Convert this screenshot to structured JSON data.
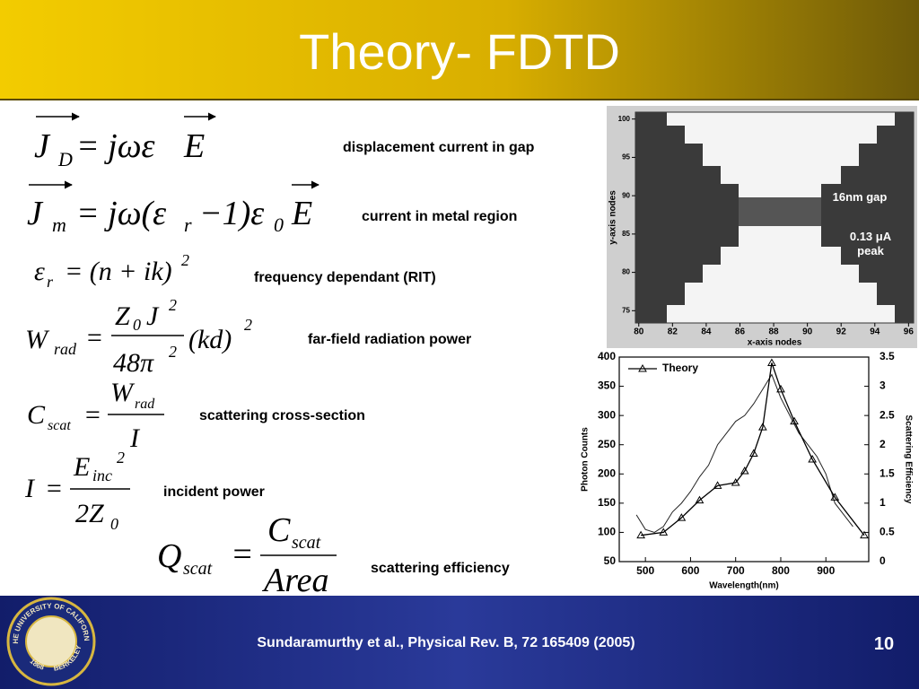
{
  "header": {
    "title": "Theory- FDTD"
  },
  "equations": [
    {
      "parts": [
        "J",
        "D",
        "= jωε",
        "E"
      ],
      "description": "displacement current in gap"
    },
    {
      "parts": [
        "J",
        "m",
        "= jω(ε",
        "r",
        "−1)ε",
        "0",
        "E"
      ],
      "description": "current in metal region"
    },
    {
      "parts": [
        "ε",
        "r",
        "= (n + ik)",
        "2"
      ],
      "description": "frequency dependant (RIT)"
    },
    {
      "parts": [
        "W",
        "rad",
        "=",
        "Z",
        "0",
        "J",
        "2",
        "48π",
        "2",
        "(kd)",
        "2"
      ],
      "description": "far-field radiation power"
    },
    {
      "parts": [
        "C",
        "scat",
        "=",
        "W",
        "rad",
        "I"
      ],
      "description": "scattering cross-section"
    },
    {
      "parts": [
        "I",
        "=",
        "E",
        "inc",
        "2",
        "2Z",
        "0"
      ],
      "description": "incident power"
    },
    {
      "parts": [
        "Q",
        "scat",
        "=",
        "C",
        "scat",
        "Area"
      ],
      "description": "scattering efficiency"
    }
  ],
  "field_plot": {
    "xlabel": "x-axis nodes",
    "ylabel": "y-axis nodes",
    "xlim": [
      79.8,
      96.3
    ],
    "ylim": [
      73.4,
      100.9
    ],
    "xticks": [
      80,
      82,
      84,
      86,
      88,
      90,
      92,
      94,
      96
    ],
    "yticks": [
      75,
      80,
      85,
      90,
      95,
      100
    ],
    "annotations": [
      "16nm gap",
      "0.13 μA",
      "peak"
    ]
  },
  "chart_data": {
    "type": "line",
    "xlabel": "Wavelength(nm)",
    "ylabel": "Photon Counts",
    "y2label": "Scattering Efficiency",
    "xlim": [
      442,
      995
    ],
    "ylim": [
      50,
      400
    ],
    "y2lim": [
      0,
      3.5
    ],
    "xticks": [
      500,
      600,
      700,
      800,
      900
    ],
    "yticks": [
      50,
      100,
      150,
      200,
      250,
      300,
      350,
      400
    ],
    "y2ticks": [
      0,
      0.5,
      1,
      1.5,
      2,
      2.5,
      3,
      3.5
    ],
    "legend": "upper left",
    "series": [
      {
        "color": "#222222",
        "x": [
          480,
          500,
          520,
          540,
          560,
          580,
          600,
          620,
          640,
          660,
          680,
          700,
          720,
          740,
          760,
          780,
          800,
          820,
          840,
          860,
          880,
          900,
          920,
          940,
          960
        ],
        "values": [
          130,
          105,
          100,
          110,
          135,
          150,
          170,
          195,
          215,
          250,
          270,
          290,
          300,
          320,
          345,
          370,
          330,
          300,
          270,
          250,
          230,
          200,
          150,
          130,
          110
        ]
      },
      {
        "name": "Theory",
        "color": "#000000",
        "axis": "y2",
        "x": [
          490,
          540,
          580,
          620,
          660,
          700,
          720,
          740,
          760,
          780,
          800,
          830,
          870,
          920,
          985
        ],
        "values": [
          0.45,
          0.5,
          0.75,
          1.05,
          1.3,
          1.35,
          1.55,
          1.85,
          2.3,
          3.4,
          2.95,
          2.4,
          1.75,
          1.1,
          0.45
        ]
      }
    ]
  },
  "footer": {
    "citation": "Sundaramurthy et al., Physical Rev. B, 72 165409 (2005)",
    "page": 10,
    "seal": [
      "THE UNIVERSITY OF CALIFORNIA",
      "BERKELEY",
      "1868"
    ]
  }
}
